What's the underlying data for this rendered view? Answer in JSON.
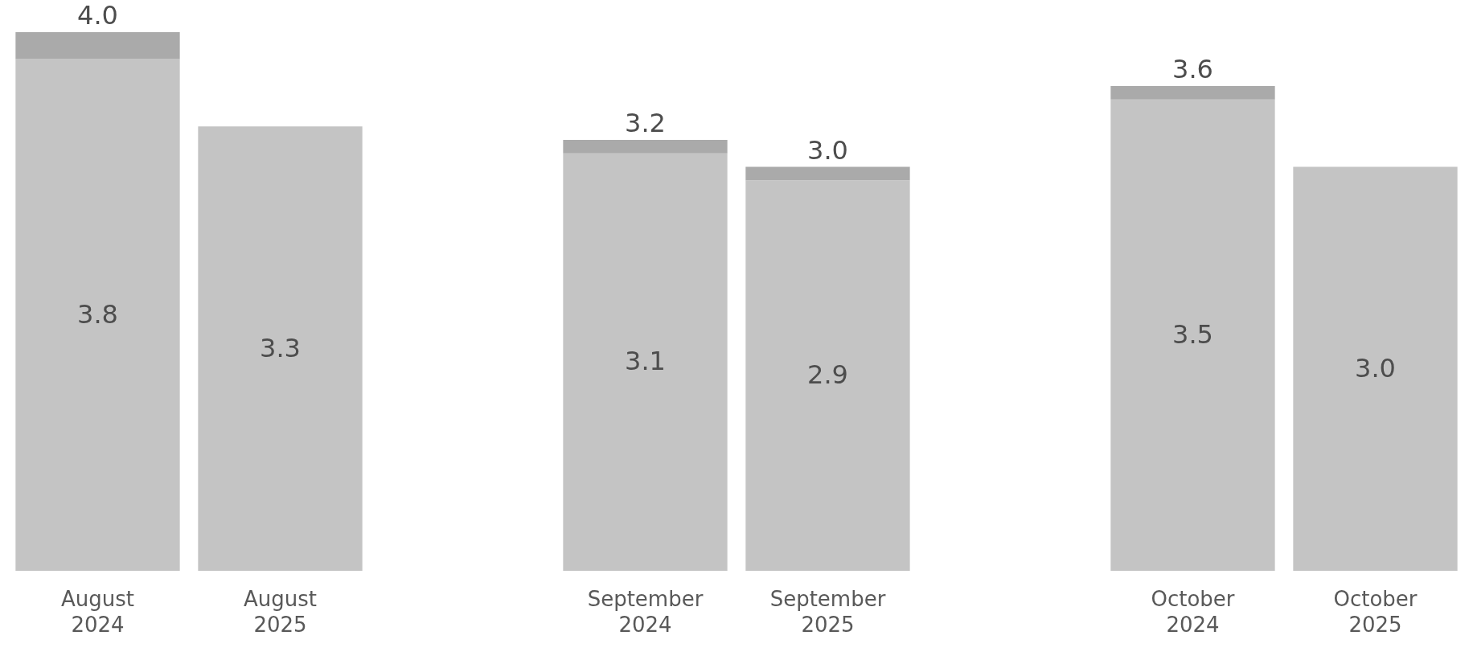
{
  "chart_data": {
    "type": "bar",
    "stacked": true,
    "categories": [
      "August 2024",
      "August 2025",
      null,
      "September 2024",
      "September 2025",
      null,
      "October 2024",
      "October 2025"
    ],
    "series": [
      {
        "color": "#c4c4c4",
        "values": [
          3.8,
          3.3,
          null,
          3.1,
          2.9,
          null,
          3.5,
          3.0
        ],
        "value_labels": [
          "3.8",
          "3.3",
          null,
          "3.1",
          "2.9",
          null,
          "3.5",
          "3.0"
        ]
      },
      {
        "color": "#aaaaaa",
        "values": [
          0.2,
          null,
          null,
          0.1,
          0.1,
          null,
          0.1,
          null
        ]
      }
    ],
    "totals": [
      "4.0",
      null,
      null,
      "3.2",
      "3.0",
      null,
      "3.6",
      null
    ],
    "grid": false
  }
}
